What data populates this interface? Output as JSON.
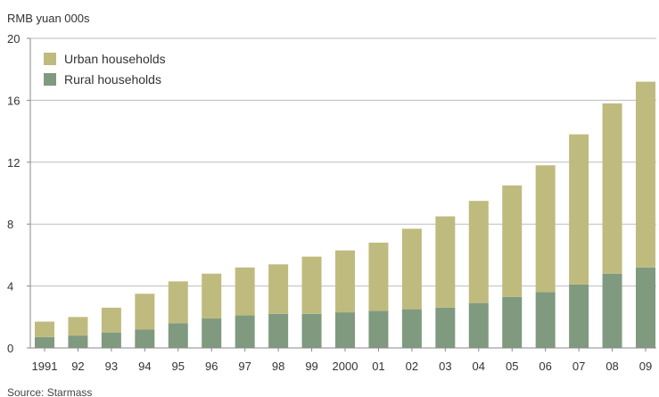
{
  "chart_data": {
    "type": "bar",
    "stacked": true,
    "unit_label": "RMB yuan 000s",
    "source": "Source: Starmass",
    "categories": [
      "1991",
      "92",
      "93",
      "94",
      "95",
      "96",
      "97",
      "98",
      "99",
      "2000",
      "01",
      "02",
      "03",
      "04",
      "05",
      "06",
      "07",
      "08",
      "09"
    ],
    "series": [
      {
        "name": "Rural households",
        "color": "#7f9a7f",
        "values": [
          0.7,
          0.8,
          1.0,
          1.2,
          1.6,
          1.9,
          2.1,
          2.2,
          2.2,
          2.3,
          2.4,
          2.5,
          2.6,
          2.9,
          3.3,
          3.6,
          4.1,
          4.8,
          5.2
        ]
      },
      {
        "name": "Urban households",
        "color": "#bfbb7e",
        "values": [
          1.0,
          1.2,
          1.6,
          2.3,
          2.7,
          2.9,
          3.1,
          3.2,
          3.7,
          4.0,
          4.4,
          5.2,
          5.9,
          6.6,
          7.2,
          8.2,
          9.7,
          11.0,
          12.0
        ]
      }
    ],
    "yticks": [
      "0",
      "4",
      "8",
      "12",
      "16",
      "20"
    ],
    "ylim": [
      0,
      20
    ],
    "grid": true,
    "legend_position": "top-left"
  }
}
